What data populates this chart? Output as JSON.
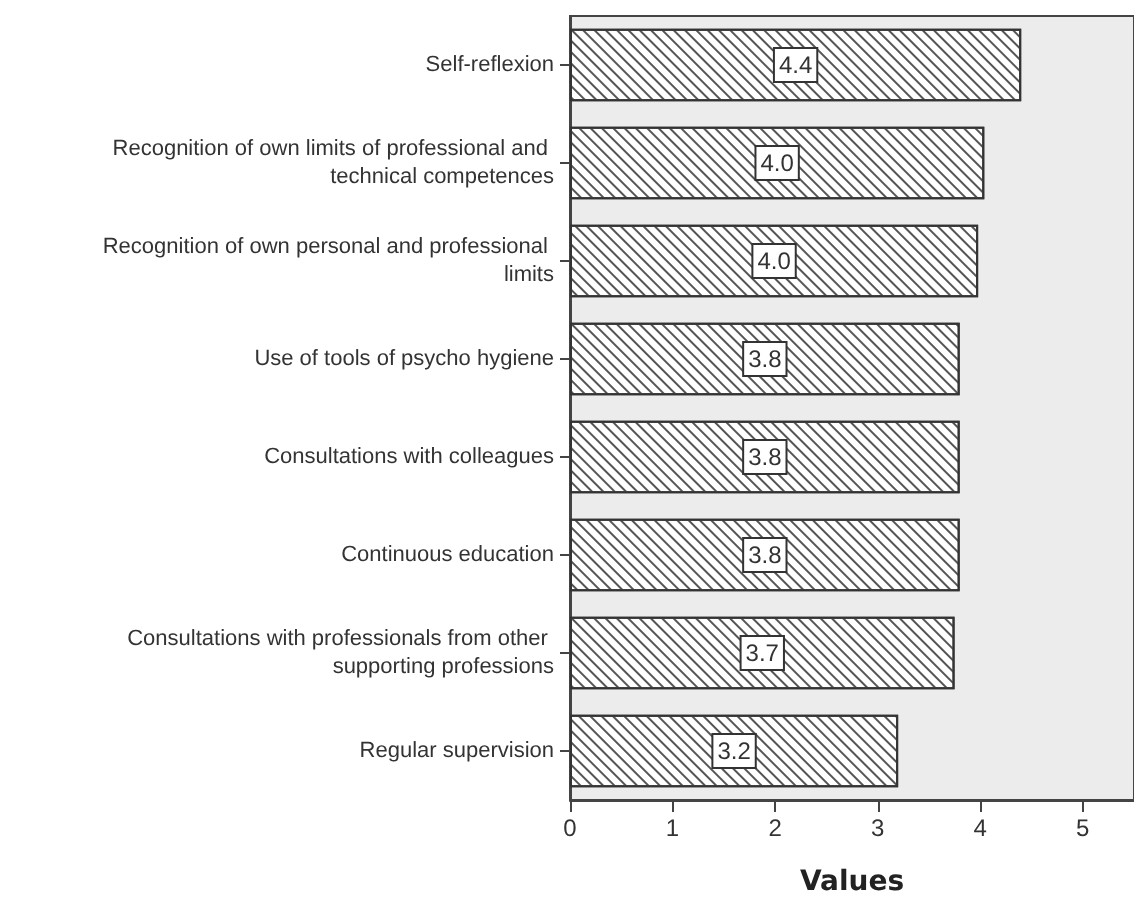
{
  "chart_data": {
    "type": "bar",
    "orientation": "horizontal",
    "xlabel": "Values",
    "categories": [
      "Self-reflexion",
      "Recognition of own limits of professional and technical competences",
      "Recognition of own personal and professional limits",
      "Use of tools of psycho hygiene",
      "Consultations with colleagues",
      "Continuous education",
      "Consultations with professionals from other supporting professions",
      "Regular supervision"
    ],
    "values": [
      4.4,
      4.04,
      3.98,
      3.8,
      3.8,
      3.8,
      3.75,
      3.2
    ],
    "value_labels": [
      "4.4",
      "4.0",
      "4.0",
      "3.8",
      "3.8",
      "3.8",
      "3.7",
      "3.2"
    ],
    "color": "#ffffff",
    "xlim": [
      0,
      5.5
    ],
    "xticks": [
      0,
      1,
      2,
      3,
      4,
      5
    ],
    "grid": false
  }
}
